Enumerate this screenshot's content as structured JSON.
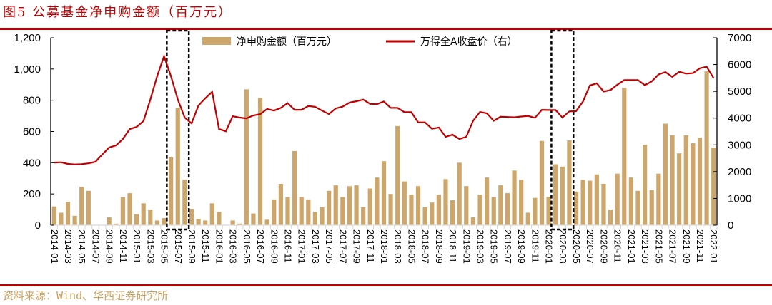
{
  "title": "图5 公募基金净申购金额（百万元）",
  "source": "资料来源：Wind、华西证券研究所",
  "colors": {
    "bar": "#cda66b",
    "line": "#c00000",
    "rule": "#c00000",
    "source": "#c8a060"
  },
  "chart_data": {
    "type": "bar+line",
    "title": "图5 公募基金净申购金额（百万元）",
    "legend_position": "top",
    "left_axis": {
      "ylim": [
        0,
        1200
      ],
      "ticks": [
        "0",
        "200",
        "400",
        "600",
        "800",
        "1,000",
        "1,200"
      ],
      "tick_values": [
        0,
        200,
        400,
        600,
        800,
        1000,
        1200
      ]
    },
    "right_axis": {
      "ylim": [
        0,
        7000
      ],
      "ticks": [
        "0",
        "1000",
        "2000",
        "3000",
        "4000",
        "5000",
        "6000",
        "7000"
      ],
      "tick_values": [
        0,
        1000,
        2000,
        3000,
        4000,
        5000,
        6000,
        7000
      ]
    },
    "x_start": "2014-01",
    "x_tick_labels": [
      "2014-01",
      "2014-03",
      "2014-05",
      "2014-07",
      "2014-09",
      "2014-11",
      "2015-01",
      "2015-03",
      "2015-05",
      "2015-07",
      "2015-09",
      "2015-11",
      "2016-01",
      "2016-03",
      "2016-05",
      "2016-07",
      "2016-09",
      "2016-11",
      "2017-01",
      "2017-03",
      "2017-05",
      "2017-07",
      "2017-09",
      "2017-11",
      "2018-01",
      "2018-03",
      "2018-05",
      "2018-07",
      "2018-09",
      "2018-11",
      "2019-01",
      "2019-03",
      "2019-05",
      "2019-07",
      "2019-09",
      "2019-11",
      "2020-01",
      "2020-03",
      "2020-05",
      "2020-07",
      "2020-09",
      "2020-11",
      "2021-01",
      "2021-03",
      "2021-05",
      "2021-07",
      "2021-09",
      "2021-11",
      "2022-01"
    ],
    "series": [
      {
        "name": "净申购金额（百万元）",
        "type": "bar",
        "axis": "left",
        "values": [
          120,
          80,
          150,
          60,
          245,
          220,
          0,
          0,
          50,
          10,
          180,
          205,
          70,
          140,
          100,
          30,
          45,
          435,
          750,
          290,
          105,
          40,
          30,
          140,
          85,
          0,
          30,
          10,
          870,
          75,
          815,
          35,
          165,
          265,
          180,
          475,
          180,
          165,
          85,
          115,
          220,
          255,
          180,
          250,
          255,
          115,
          235,
          305,
          410,
          200,
          635,
          280,
          195,
          250,
          115,
          145,
          195,
          295,
          160,
          400,
          250,
          50,
          195,
          305,
          180,
          255,
          205,
          350,
          290,
          80,
          175,
          540,
          182,
          390,
          375,
          543,
          215,
          290,
          285,
          325,
          265,
          100,
          330,
          880,
          305,
          220,
          515,
          225,
          330,
          650,
          575,
          460,
          575,
          525,
          560,
          985,
          495
        ]
      },
      {
        "name": "万得全A收盘价（右）",
        "type": "line",
        "axis": "right",
        "values": [
          2340,
          2350,
          2290,
          2270,
          2280,
          2310,
          2370,
          2640,
          2900,
          2980,
          3220,
          3590,
          3670,
          3890,
          4690,
          5570,
          6310,
          5570,
          4690,
          4020,
          3800,
          4470,
          4740,
          4980,
          3590,
          3510,
          4070,
          4020,
          3990,
          4100,
          4150,
          4340,
          4280,
          4380,
          4560,
          4310,
          4310,
          4450,
          4420,
          4280,
          4150,
          4360,
          4430,
          4580,
          4630,
          4690,
          4530,
          4520,
          4620,
          4380,
          4380,
          4220,
          4220,
          3840,
          3840,
          3600,
          3650,
          3300,
          3380,
          3220,
          3300,
          3900,
          4230,
          4180,
          3900,
          4050,
          4040,
          4030,
          4060,
          4080,
          4010,
          4310,
          4300,
          4300,
          4020,
          4250,
          4260,
          4620,
          5220,
          5300,
          4990,
          5050,
          5250,
          5420,
          5420,
          5420,
          5230,
          5370,
          5630,
          5720,
          5540,
          5730,
          5660,
          5680,
          5860,
          5920,
          5500
        ]
      }
    ],
    "highlight_ranges": [
      [
        "2015-06",
        "2015-08"
      ],
      [
        "2020-02",
        "2020-04"
      ]
    ]
  }
}
